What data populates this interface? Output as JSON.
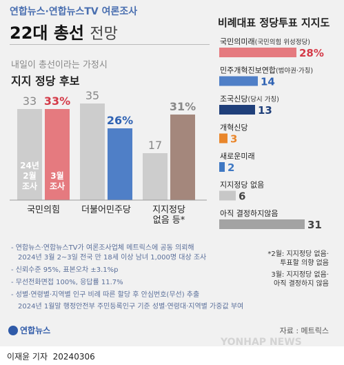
{
  "header": {
    "subtitle": "연합뉴스·연합뉴스TV 여론조사",
    "title_bold": "22대 총선",
    "title_light": "전망"
  },
  "left": {
    "subtitle": "내일이 총선이라는 가정시",
    "title": "지지 정당 후보",
    "legend_feb": [
      "24년",
      "2월",
      "조사"
    ],
    "legend_mar": [
      "3월",
      "조사"
    ]
  },
  "right": {
    "title": "비례대표 정당투표 지지도"
  },
  "notes": {
    "note1_a": "*2월: 지지정당 없음·",
    "note1_b": "투표할 의향 없음",
    "note2_a": "3월: 지지정당 없음·",
    "note2_b": "아직 결정하지 않음"
  },
  "sources": {
    "line1": "- 연합뉴스·연합뉴스TV가 여론조사업체 메트릭스에 공동 의뢰해",
    "line1b": "2024년 3월 2~3일 전국 만 18세 이상 남녀 1,000명 대상 조사",
    "line2": "- 신뢰수준 95%, 표본오차 ±3.1%p",
    "line3": "- 무선전화면접 100%, 응답률 11.7%",
    "line4": "- 성별·연령별·지역별 인구 비례 따른 할당 후 안심번호(무선) 추출",
    "line4b": "2024년 1월말 행정안전부 주민등록인구 기준 성별·연령대·지역별 가중값 부여",
    "source": "자료 : 메트릭스"
  },
  "branding": {
    "yna": "연합뉴스",
    "yonhap": "YONHAP NEWS",
    "reporter": "이재윤 기자",
    "date": "20240306"
  },
  "colors": {
    "feb_gray": "#cdcdcd",
    "ppp_red": "#e57a7f",
    "dp_blue": "#4f7fc7",
    "other_brown": "#a4877c",
    "ppp_text": "#d43a48",
    "dp_text": "#2f62b3",
    "gray_text": "#888888",
    "cheongwadae_navy": "#1f3f7a",
    "reform_orange": "#e9862b",
    "new_future_blue": "#3f78c3",
    "none_gray": "#c7c7c7",
    "undecided_gray": "#a3a3a3"
  },
  "chart_data": [
    {
      "type": "bar",
      "title": "지지 정당 후보",
      "categories": [
        "국민의힘",
        "더불어민주당",
        "지지정당 없음 등*"
      ],
      "series": [
        {
          "name": "24년 2월 조사",
          "values": [
            33,
            35,
            17
          ],
          "labels": [
            "33",
            "35",
            "17"
          ]
        },
        {
          "name": "3월 조사",
          "values": [
            33,
            26,
            31
          ],
          "labels": [
            "33%",
            "26%",
            "31%"
          ]
        }
      ],
      "ylim": [
        0,
        40
      ]
    },
    {
      "type": "bar",
      "title": "비례대표 정당투표 지지도",
      "orientation": "horizontal",
      "categories": [
        "국민의미래(국민의힘 위성정당)",
        "민주개혁진보연합(범야권·가칭)",
        "조국신당(당시 가칭)",
        "개혁신당",
        "새로운미래",
        "지지정당 없음",
        "아직 결정하지않음"
      ],
      "values": [
        28,
        14,
        13,
        3,
        2,
        6,
        31
      ],
      "labels": [
        "28%",
        "14",
        "13",
        "3",
        "2",
        "6",
        "31"
      ],
      "xlim": [
        0,
        31
      ]
    }
  ]
}
